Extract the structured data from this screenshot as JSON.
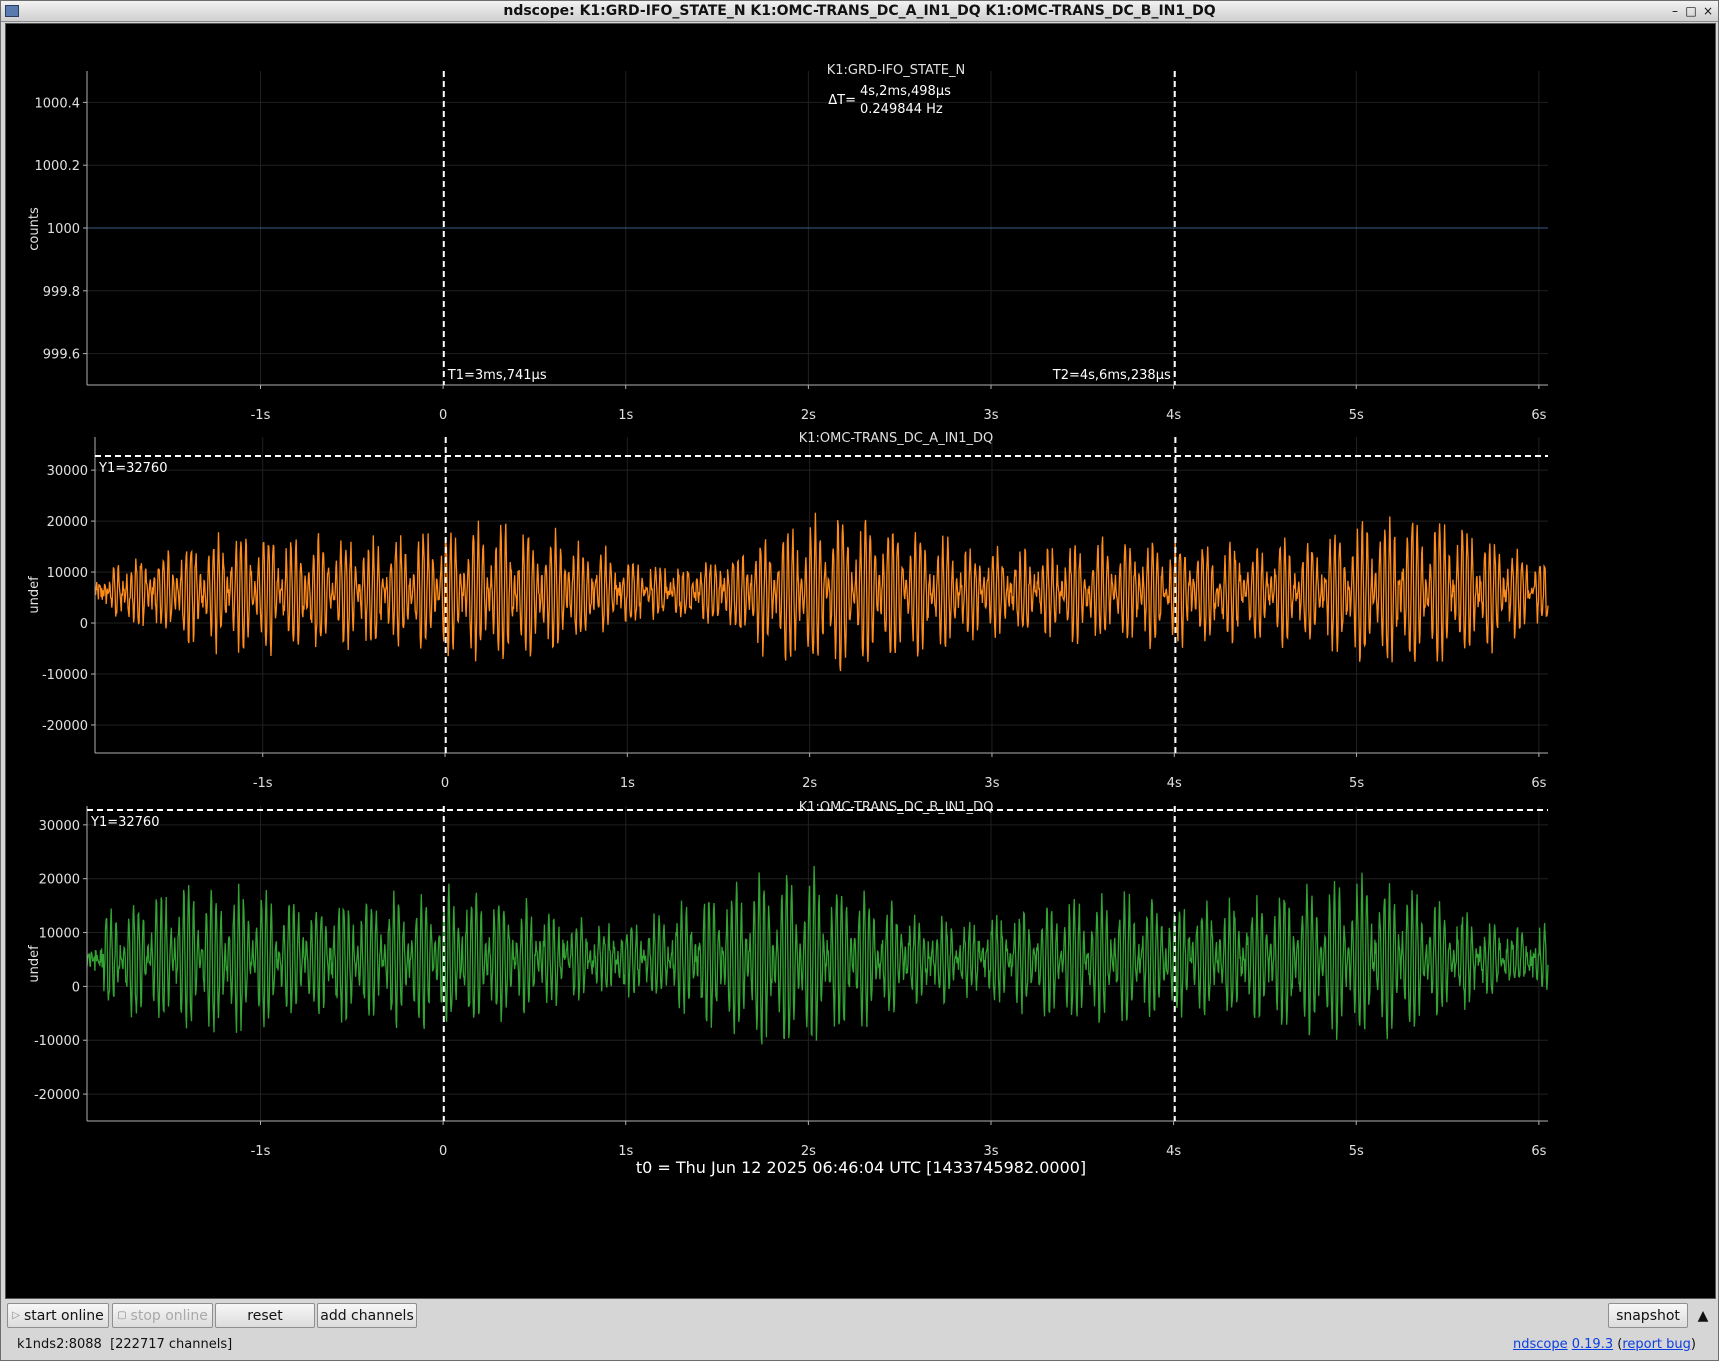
{
  "window": {
    "title": "ndscope: K1:GRD-IFO_STATE_N K1:OMC-TRANS_DC_A_IN1_DQ K1:OMC-TRANS_DC_B_IN1_DQ",
    "controls": {
      "minimize": "–",
      "maximize": "□",
      "close": "×"
    }
  },
  "colors": {
    "background": "#000000",
    "trace_state": "#3a5b86",
    "trace_a": "#ff8c1a",
    "trace_b": "#33a333",
    "cursor": "#ffffff",
    "axis": "#b0b0b0",
    "grid": "#202020"
  },
  "cursors": {
    "t1_label": "T1=3ms,741µs",
    "t2_label": "T2=4s,6ms,238µs",
    "delta_label": "ΔT=",
    "delta_time": "4s,2ms,498µs",
    "delta_freq": "0.249844 Hz",
    "t1": 0.003741,
    "t2": 4.006238
  },
  "chart_data": [
    {
      "type": "line",
      "title": "K1:GRD-IFO_STATE_N",
      "ylabel": "counts",
      "xlim": [
        -1.95,
        6.05
      ],
      "ylim": [
        999.5,
        1000.5
      ],
      "yticks": [
        999.6,
        999.8,
        1000,
        1000.2,
        1000.4
      ],
      "ytick_labels": [
        "999.6",
        "999.8",
        "1000",
        "1000.2",
        "1000.4"
      ],
      "xticks": [
        -1,
        0,
        1,
        2,
        3,
        4,
        5,
        6
      ],
      "xtick_labels": [
        "-1s",
        "0",
        "1s",
        "2s",
        "3s",
        "4s",
        "5s",
        "6s"
      ],
      "series": [
        {
          "color": "#3a5b86",
          "x": [
            -1.95,
            6.05
          ],
          "y": [
            1000,
            1000
          ]
        }
      ]
    },
    {
      "type": "line",
      "title": "K1:OMC-TRANS_DC_A_IN1_DQ",
      "ylabel": "undef",
      "xlim": [
        -1.92,
        6.05
      ],
      "ylim": [
        -25500,
        36500
      ],
      "yticks": [
        -20000,
        -10000,
        0,
        10000,
        20000,
        30000
      ],
      "ytick_labels": [
        "-20000",
        "-10000",
        "0",
        "10000",
        "20000",
        "30000"
      ],
      "xticks": [
        -1,
        0,
        1,
        2,
        3,
        4,
        5,
        6
      ],
      "xtick_labels": [
        "-1s",
        "0",
        "1s",
        "2s",
        "3s",
        "4s",
        "5s",
        "6s"
      ],
      "y1_label": "Y1=32760",
      "y1": 32760,
      "series": [
        {
          "color": "#ff8c1a",
          "mean": 6000,
          "amplitude": 13000,
          "start": -1.92,
          "end": 6.05
        }
      ]
    },
    {
      "type": "line",
      "title": "K1:OMC-TRANS_DC_B_IN1_DQ",
      "ylabel": "undef",
      "xlim": [
        -1.95,
        6.05
      ],
      "ylim": [
        -25000,
        33500
      ],
      "yticks": [
        -20000,
        -10000,
        0,
        10000,
        20000,
        30000
      ],
      "ytick_labels": [
        "-20000",
        "-10000",
        "0",
        "10000",
        "20000",
        "30000"
      ],
      "xticks": [
        -1,
        0,
        1,
        2,
        3,
        4,
        5,
        6
      ],
      "xtick_labels": [
        "-1s",
        "0",
        "1s",
        "2s",
        "3s",
        "4s",
        "5s",
        "6s"
      ],
      "y1_label": "Y1=32760",
      "y1": 32760,
      "series": [
        {
          "color": "#33a333",
          "mean": 5000,
          "amplitude": 13500,
          "start": -1.95,
          "end": 6.05
        }
      ]
    }
  ],
  "t0_label": "t0 = Thu Jun 12 2025 06:46:04 UTC [1433745982.0000]",
  "toolbar": {
    "start_online": "start online",
    "stop_online": "stop online",
    "reset": "reset",
    "add_channels": "add channels",
    "snapshot": "snapshot",
    "expand": "▲"
  },
  "status": {
    "server": "k1nds2:8088  [222717 channels]",
    "app_name": "ndscope",
    "version": "0.19.3",
    "report_bug": "report bug"
  }
}
